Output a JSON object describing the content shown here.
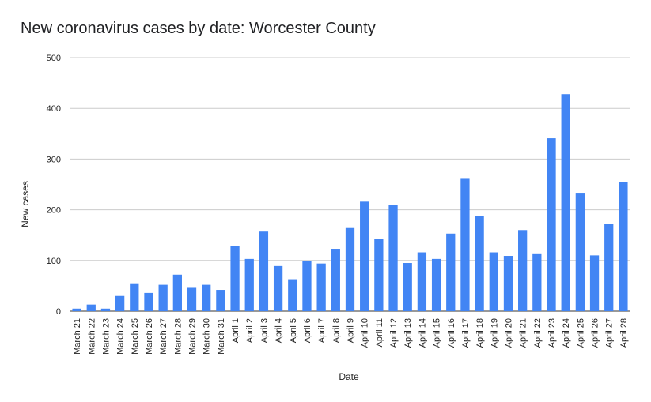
{
  "chart_data": {
    "type": "bar",
    "title": "New coronavirus cases by date: Worcester County",
    "xlabel": "Date",
    "ylabel": "New cases",
    "ylim": [
      0,
      500
    ],
    "yticks": [
      0,
      100,
      200,
      300,
      400,
      500
    ],
    "grid": true,
    "legend": "none",
    "color": "#4285f4",
    "categories": [
      "March 21",
      "March 22",
      "March 23",
      "March 24",
      "March 25",
      "March 26",
      "March 27",
      "March 28",
      "March 29",
      "March 30",
      "March 31",
      "April 1",
      "April 2",
      "April 3",
      "April 4",
      "April 5",
      "April 6",
      "April 7",
      "April 8",
      "April 9",
      "April 10",
      "April 11",
      "April 12",
      "April 13",
      "April 14",
      "April 15",
      "April 16",
      "April 17",
      "April 18",
      "April 19",
      "April 20",
      "April 21",
      "April 22",
      "April 23",
      "April 24",
      "April 25",
      "April 26",
      "April 27",
      "April 28"
    ],
    "values": [
      5,
      13,
      5,
      30,
      55,
      36,
      52,
      72,
      46,
      52,
      42,
      129,
      103,
      157,
      89,
      63,
      99,
      94,
      123,
      164,
      216,
      143,
      209,
      95,
      116,
      103,
      153,
      261,
      187,
      116,
      109,
      160,
      114,
      341,
      428,
      232,
      110,
      172,
      254
    ]
  }
}
